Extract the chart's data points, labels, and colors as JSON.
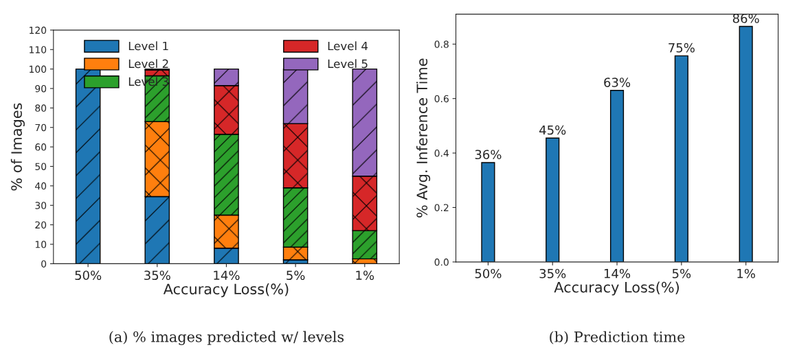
{
  "chart_data": [
    {
      "type": "bar",
      "stacked": true,
      "xlabel": "Accuracy Loss(%)",
      "ylabel": "% of Images",
      "categories": [
        "50%",
        "35%",
        "14%",
        "5%",
        "1%"
      ],
      "series": [
        {
          "name": "Level 1",
          "color": "#1f77b4",
          "values": [
            100,
            34.5,
            8,
            2,
            null
          ]
        },
        {
          "name": "Level 2",
          "color": "#ff7f0e",
          "values": [
            0,
            38.5,
            17,
            6.5,
            2.5
          ]
        },
        {
          "name": "Level 3",
          "color": "#2ca02c",
          "values": [
            0,
            23.5,
            41.5,
            30.5,
            14.5
          ]
        },
        {
          "name": "Level 4",
          "color": "#d62728",
          "values": [
            0,
            3,
            25,
            33,
            28
          ]
        },
        {
          "name": "Level 5",
          "color": "#9467bd",
          "values": [
            0,
            0.5,
            8.5,
            28,
            55
          ]
        }
      ],
      "ylim": [
        0,
        120
      ],
      "yticks": [
        0,
        10,
        20,
        30,
        40,
        50,
        60,
        70,
        80,
        90,
        100,
        110,
        120
      ],
      "legend": "top",
      "grid": false,
      "annotations": [
        "(a) % images predicted w/ levels"
      ]
    },
    {
      "type": "bar",
      "xlabel": "Accuracy Loss(%)",
      "ylabel": "% Avg. Inference Time",
      "categories": [
        "50%",
        "35%",
        "14%",
        "5%",
        "1%"
      ],
      "series": [
        {
          "color": "#1f77b4",
          "values": [
            0.365,
            0.455,
            0.63,
            0.757,
            0.865
          ]
        }
      ],
      "value_labels": [
        "36%",
        "45%",
        "63%",
        "75%",
        "86%"
      ],
      "ylim": [
        0,
        0.91
      ],
      "yticks": [
        {
          "value": 0,
          "label": "0.0"
        },
        {
          "value": 0.2,
          "label": "0.2"
        },
        {
          "value": 0.4,
          "label": "0.4"
        },
        {
          "value": 0.6,
          "label": "0.6"
        },
        {
          "value": 0.8,
          "label": "0.8"
        }
      ],
      "grid": false,
      "annotations": [
        "(b) Prediction time"
      ]
    }
  ]
}
